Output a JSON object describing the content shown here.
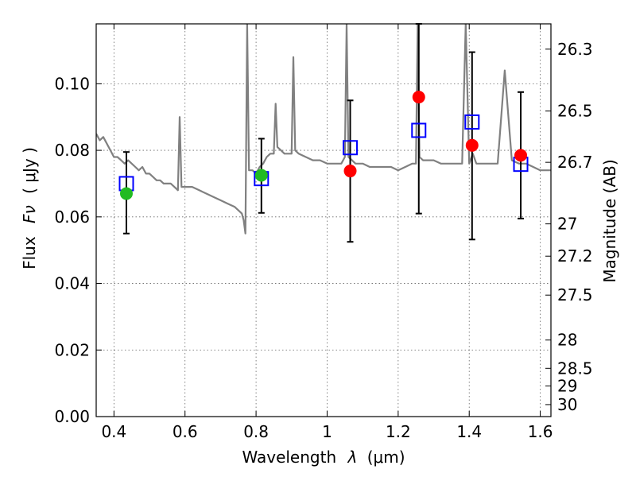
{
  "chart_data": {
    "type": "scatter",
    "xlabel_text": "Wavelength",
    "xlabel_symbol": "λ",
    "xlabel_unit": "(μm)",
    "ylabel_text": "Flux",
    "ylabel_symbol": "Fν",
    "ylabel_unit": "( μJy )",
    "y2label": "Magnitude (AB)",
    "xlim": [
      0.35,
      1.63
    ],
    "ylim": [
      0.0,
      0.118
    ],
    "xticks": [
      0.4,
      0.6,
      0.8,
      1.0,
      1.2,
      1.4,
      1.6
    ],
    "xtick_labels": [
      "0.4",
      "0.6",
      "0.8",
      "1",
      "1.2",
      "1.4",
      "1.6"
    ],
    "yticks": [
      0.0,
      0.02,
      0.04,
      0.06,
      0.08,
      0.1
    ],
    "ytick_labels": [
      "0.00",
      "0.02",
      "0.04",
      "0.06",
      "0.08",
      "0.10"
    ],
    "y2ticks": [
      {
        "label": "26.3",
        "flux": 0.1104
      },
      {
        "label": "26.5",
        "flux": 0.0918
      },
      {
        "label": "26.7",
        "flux": 0.0764
      },
      {
        "label": "27",
        "flux": 0.0579
      },
      {
        "label": "27.2",
        "flux": 0.0482
      },
      {
        "label": "27.5",
        "flux": 0.0365
      },
      {
        "label": "28",
        "flux": 0.023
      },
      {
        "label": "28.5",
        "flux": 0.0145
      },
      {
        "label": "29",
        "flux": 0.0092
      },
      {
        "label": "30",
        "flux": 0.0036
      }
    ],
    "grid": true,
    "colors": {
      "spectrum": "#808080",
      "observed_open_square": "#0000ff",
      "model_red": "#ff0000",
      "model_green": "#22bb22"
    },
    "spectrum": {
      "x": [
        0.35,
        0.36,
        0.37,
        0.38,
        0.39,
        0.4,
        0.41,
        0.42,
        0.43,
        0.44,
        0.45,
        0.46,
        0.47,
        0.48,
        0.49,
        0.5,
        0.51,
        0.52,
        0.53,
        0.54,
        0.55,
        0.56,
        0.57,
        0.58,
        0.585,
        0.59,
        0.6,
        0.62,
        0.64,
        0.66,
        0.68,
        0.7,
        0.72,
        0.74,
        0.76,
        0.765,
        0.77,
        0.775,
        0.78,
        0.79,
        0.8,
        0.81,
        0.82,
        0.83,
        0.84,
        0.85,
        0.855,
        0.86,
        0.87,
        0.88,
        0.9,
        0.905,
        0.91,
        0.92,
        0.94,
        0.96,
        0.98,
        1.0,
        1.02,
        1.04,
        1.05,
        1.055,
        1.06,
        1.07,
        1.08,
        1.1,
        1.12,
        1.14,
        1.16,
        1.18,
        1.2,
        1.22,
        1.24,
        1.25,
        1.255,
        1.26,
        1.27,
        1.28,
        1.3,
        1.32,
        1.34,
        1.36,
        1.38,
        1.39,
        1.4,
        1.41,
        1.42,
        1.44,
        1.46,
        1.48,
        1.5,
        1.52,
        1.54,
        1.56,
        1.58,
        1.6,
        1.63
      ],
      "y": [
        0.085,
        0.083,
        0.084,
        0.082,
        0.08,
        0.078,
        0.078,
        0.077,
        0.076,
        0.077,
        0.076,
        0.075,
        0.074,
        0.075,
        0.073,
        0.073,
        0.072,
        0.071,
        0.071,
        0.07,
        0.07,
        0.07,
        0.069,
        0.068,
        0.09,
        0.069,
        0.069,
        0.069,
        0.068,
        0.067,
        0.066,
        0.065,
        0.064,
        0.063,
        0.061,
        0.059,
        0.055,
        0.118,
        0.074,
        0.074,
        0.073,
        0.075,
        0.076,
        0.078,
        0.079,
        0.079,
        0.094,
        0.081,
        0.08,
        0.079,
        0.079,
        0.108,
        0.08,
        0.079,
        0.078,
        0.077,
        0.077,
        0.076,
        0.076,
        0.076,
        0.078,
        0.118,
        0.078,
        0.077,
        0.076,
        0.076,
        0.075,
        0.075,
        0.075,
        0.075,
        0.074,
        0.075,
        0.076,
        0.076,
        0.118,
        0.078,
        0.077,
        0.077,
        0.077,
        0.076,
        0.076,
        0.076,
        0.076,
        0.118,
        0.076,
        0.079,
        0.076,
        0.076,
        0.076,
        0.076,
        0.104,
        0.077,
        0.076,
        0.076,
        0.075,
        0.074,
        0.074
      ]
    },
    "observed": [
      {
        "x": 0.435,
        "y": 0.07,
        "yerr_low": 0.055,
        "yerr_high": 0.0795
      },
      {
        "x": 0.815,
        "y": 0.0715,
        "yerr_low": 0.0612,
        "yerr_high": 0.0835
      },
      {
        "x": 1.065,
        "y": 0.0808,
        "yerr_low": 0.0525,
        "yerr_high": 0.095
      },
      {
        "x": 1.258,
        "y": 0.086,
        "yerr_low": 0.061,
        "yerr_high": 0.118
      },
      {
        "x": 1.408,
        "y": 0.0885,
        "yerr_low": 0.0532,
        "yerr_high": 0.1095
      },
      {
        "x": 1.545,
        "y": 0.0758,
        "yerr_low": 0.0595,
        "yerr_high": 0.0975
      }
    ],
    "model_points": [
      {
        "x": 0.435,
        "y": 0.067,
        "color": "green"
      },
      {
        "x": 0.815,
        "y": 0.0725,
        "color": "green"
      },
      {
        "x": 1.065,
        "y": 0.0738,
        "color": "red"
      },
      {
        "x": 1.258,
        "y": 0.096,
        "color": "red"
      },
      {
        "x": 1.408,
        "y": 0.0815,
        "color": "red"
      },
      {
        "x": 1.545,
        "y": 0.0785,
        "color": "red"
      }
    ]
  }
}
